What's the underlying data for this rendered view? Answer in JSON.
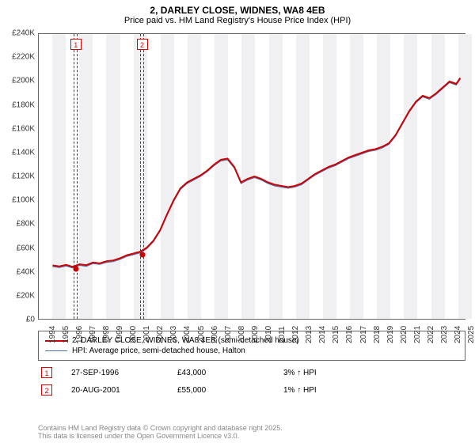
{
  "title": "2, DARLEY CLOSE, WIDNES, WA8 4EB",
  "subtitle": "Price paid vs. HM Land Registry's House Price Index (HPI)",
  "chart": {
    "type": "line",
    "x_start_year": 1994,
    "x_end_year": 2025,
    "xlim": [
      1994,
      2025.6
    ],
    "ylim": [
      0,
      240000
    ],
    "ytick_step": 20000,
    "ytick_prefix": "£",
    "ytick_suffix": "K",
    "ytick_divisor": 1000,
    "background": "#ffffff",
    "alt_band_color": "#f0f0f2",
    "border_color": "#666666",
    "font_size_axis": 10,
    "series": [
      {
        "name": "2, DARLEY CLOSE, WIDNES, WA8 4EB (semi-detached house)",
        "color": "#cc0000",
        "width": 2,
        "points": [
          [
            1995.0,
            45000
          ],
          [
            1995.5,
            44200
          ],
          [
            1996.0,
            45500
          ],
          [
            1996.5,
            43800
          ],
          [
            1997.0,
            46000
          ],
          [
            1997.5,
            45200
          ],
          [
            1998.0,
            47500
          ],
          [
            1998.5,
            46800
          ],
          [
            1999.0,
            48500
          ],
          [
            1999.5,
            49200
          ],
          [
            2000.0,
            51000
          ],
          [
            2000.5,
            53500
          ],
          [
            2001.0,
            55000
          ],
          [
            2001.5,
            56500
          ],
          [
            2002.0,
            60000
          ],
          [
            2002.5,
            66000
          ],
          [
            2003.0,
            75000
          ],
          [
            2003.5,
            88000
          ],
          [
            2004.0,
            100000
          ],
          [
            2004.5,
            110000
          ],
          [
            2005.0,
            115000
          ],
          [
            2005.5,
            118000
          ],
          [
            2006.0,
            121000
          ],
          [
            2006.5,
            125000
          ],
          [
            2007.0,
            130000
          ],
          [
            2007.5,
            134000
          ],
          [
            2008.0,
            135000
          ],
          [
            2008.5,
            128000
          ],
          [
            2009.0,
            115000
          ],
          [
            2009.5,
            118000
          ],
          [
            2010.0,
            120000
          ],
          [
            2010.5,
            118000
          ],
          [
            2011.0,
            115000
          ],
          [
            2011.5,
            113000
          ],
          [
            2012.0,
            112000
          ],
          [
            2012.5,
            111000
          ],
          [
            2013.0,
            112000
          ],
          [
            2013.5,
            114000
          ],
          [
            2014.0,
            118000
          ],
          [
            2014.5,
            122000
          ],
          [
            2015.0,
            125000
          ],
          [
            2015.5,
            128000
          ],
          [
            2016.0,
            130000
          ],
          [
            2016.5,
            133000
          ],
          [
            2017.0,
            136000
          ],
          [
            2017.5,
            138000
          ],
          [
            2018.0,
            140000
          ],
          [
            2018.5,
            142000
          ],
          [
            2019.0,
            143000
          ],
          [
            2019.5,
            145000
          ],
          [
            2020.0,
            148000
          ],
          [
            2020.5,
            155000
          ],
          [
            2021.0,
            165000
          ],
          [
            2021.5,
            175000
          ],
          [
            2022.0,
            183000
          ],
          [
            2022.5,
            188000
          ],
          [
            2023.0,
            186000
          ],
          [
            2023.5,
            190000
          ],
          [
            2024.0,
            195000
          ],
          [
            2024.5,
            200000
          ],
          [
            2025.0,
            198000
          ],
          [
            2025.3,
            203000
          ]
        ]
      },
      {
        "name": "HPI: Average price, semi-detached house, Halton",
        "color": "#4a6db0",
        "width": 1,
        "points": [
          [
            1995.0,
            44000
          ],
          [
            1995.5,
            43200
          ],
          [
            1996.0,
            44500
          ],
          [
            1996.5,
            42800
          ],
          [
            1997.0,
            45000
          ],
          [
            1997.5,
            44200
          ],
          [
            1998.0,
            46500
          ],
          [
            1998.5,
            45800
          ],
          [
            1999.0,
            47500
          ],
          [
            1999.5,
            48200
          ],
          [
            2000.0,
            50000
          ],
          [
            2000.5,
            52500
          ],
          [
            2001.0,
            54000
          ],
          [
            2001.5,
            55500
          ],
          [
            2002.0,
            59000
          ],
          [
            2002.5,
            65000
          ],
          [
            2003.0,
            74000
          ],
          [
            2003.5,
            87000
          ],
          [
            2004.0,
            99000
          ],
          [
            2004.5,
            109000
          ],
          [
            2005.0,
            114000
          ],
          [
            2005.5,
            117000
          ],
          [
            2006.0,
            120000
          ],
          [
            2006.5,
            124000
          ],
          [
            2007.0,
            129000
          ],
          [
            2007.5,
            133000
          ],
          [
            2008.0,
            134000
          ],
          [
            2008.5,
            127000
          ],
          [
            2009.0,
            114000
          ],
          [
            2009.5,
            117000
          ],
          [
            2010.0,
            119000
          ],
          [
            2010.5,
            117000
          ],
          [
            2011.0,
            114000
          ],
          [
            2011.5,
            112000
          ],
          [
            2012.0,
            111000
          ],
          [
            2012.5,
            110000
          ],
          [
            2013.0,
            111000
          ],
          [
            2013.5,
            113000
          ],
          [
            2014.0,
            117000
          ],
          [
            2014.5,
            121000
          ],
          [
            2015.0,
            124000
          ],
          [
            2015.5,
            127000
          ],
          [
            2016.0,
            129000
          ],
          [
            2016.5,
            132000
          ],
          [
            2017.0,
            135000
          ],
          [
            2017.5,
            137000
          ],
          [
            2018.0,
            139000
          ],
          [
            2018.5,
            141000
          ],
          [
            2019.0,
            142000
          ],
          [
            2019.5,
            144000
          ],
          [
            2020.0,
            147000
          ],
          [
            2020.5,
            154000
          ],
          [
            2021.0,
            164000
          ],
          [
            2021.5,
            174000
          ],
          [
            2022.0,
            182000
          ],
          [
            2022.5,
            187000
          ],
          [
            2023.0,
            185000
          ],
          [
            2023.5,
            189000
          ],
          [
            2024.0,
            194000
          ],
          [
            2024.5,
            199000
          ],
          [
            2025.0,
            197000
          ],
          [
            2025.3,
            202000
          ]
        ]
      }
    ],
    "sales": [
      {
        "n": "1",
        "year": 1996.74,
        "value": 43000,
        "date": "27-SEP-1996",
        "diff": "3% ↑ HPI"
      },
      {
        "n": "2",
        "year": 2001.64,
        "value": 55000,
        "date": "20-AUG-2001",
        "diff": "1% ↑ HPI"
      }
    ],
    "sale_band_width_years": 0.3,
    "sale_marker_color": "#cc0000",
    "sale_box_border": "#cc0000"
  },
  "footnote1": "Contains HM Land Registry data © Crown copyright and database right 2025.",
  "footnote2": "This data is licensed under the Open Government Licence v3.0."
}
